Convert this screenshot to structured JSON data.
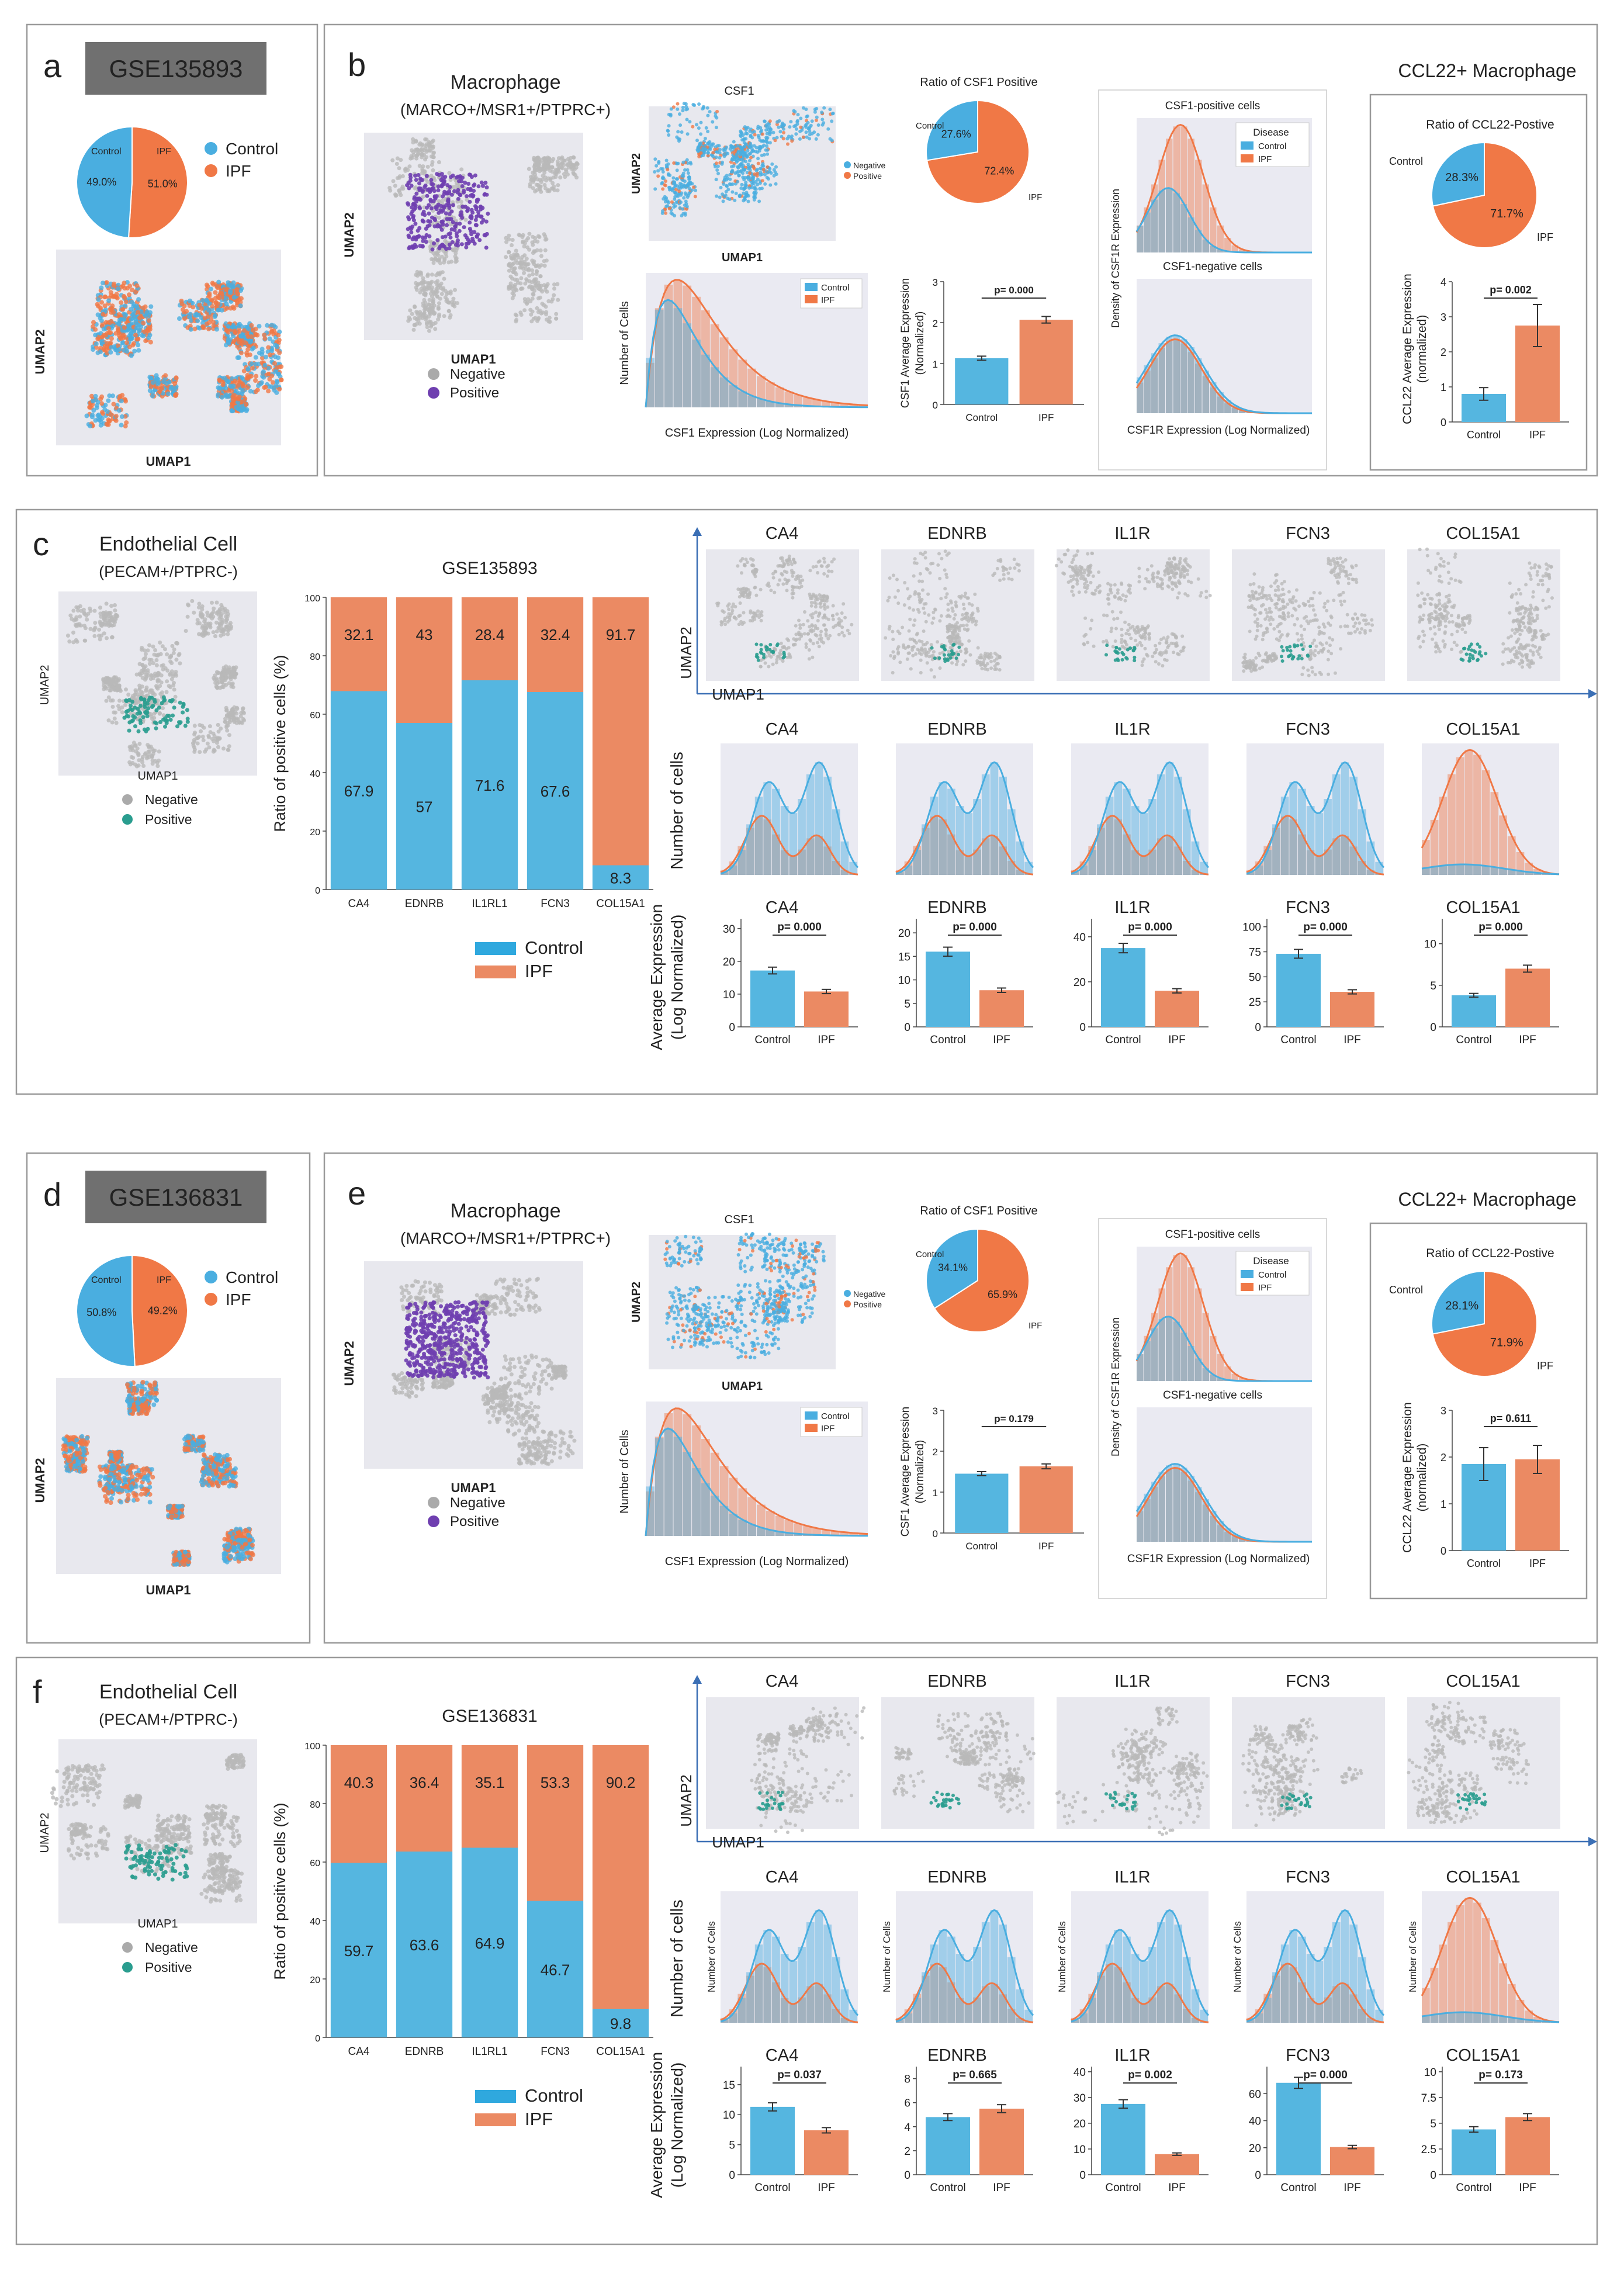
{
  "colors": {
    "control": "#4aaee0",
    "ipf": "#f07846",
    "ipf_bar": "#eb8a63",
    "control_bar": "#55b6e0",
    "purple": "#6f3fb0",
    "green": "#1c9a4c",
    "teal": "#2a9d8f",
    "umap_bg": "#e8e8ee",
    "neg": "#b9b9b9",
    "header": "#707070"
  },
  "labels": {
    "control": "Control",
    "ipf": "IPF",
    "negative": "Negative",
    "positive": "Positive",
    "umap1": "UMAP1",
    "umap2": "UMAP2",
    "disease": "Disease",
    "csf1": "CSF1",
    "ratio_csf1": "Ratio of CSF1 Positive",
    "ratio_ccl22": "Ratio of CCL22-Postive",
    "ccl22_title": "CCL22+ Macrophage",
    "macrophage": "Macrophage",
    "macrophage_markers": "(MARCO+/MSR1+/PTPRC+)",
    "endothelial": "Endothelial  Cell",
    "endothelial_markers": "(PECAM+/PTPRC-)",
    "num_cells": "Number of Cells",
    "num_cells_lc": "Number of cells",
    "csf1_expr": "CSF1 Expression (Log Normalized)",
    "csf1r_expr": "CSF1R Expression (Log Normalized)",
    "csf1_avg": "CSF1 Average Expression\n(Normalized)",
    "ccl22_avg": "CCL22 Average Expression\n(normalized)",
    "density_csf1r": "Density of CSF1R Expression",
    "csf1_pos_cells": "CSF1-positive cells",
    "csf1_neg_cells": "CSF1-negative cells",
    "ratio_pos": "Ratio of positive cells (%)",
    "avg_expr": "Average Expression\n(Log Normalized)"
  },
  "panels": {
    "a": {
      "letter": "a",
      "gse": "GSE135893",
      "pie": {
        "control_label": "Control",
        "ipf_label": "IPF",
        "control_pct": "49.0%",
        "ipf_pct": "51.0%",
        "control": 49.0,
        "ipf": 51.0
      }
    },
    "b": {
      "letter": "b",
      "pie_csf1": {
        "control_pct": "27.6%",
        "ipf_pct": "72.4%",
        "control": 27.6,
        "ipf": 72.4
      },
      "pie_ccl22": {
        "control_pct": "28.3%",
        "ipf_pct": "71.7%",
        "control": 28.3,
        "ipf": 71.7
      },
      "pval_csf1": "p= 0.000",
      "pval_ccl22": "p= 0.002"
    },
    "c": {
      "letter": "c",
      "gse": "GSE135893"
    },
    "d": {
      "letter": "d",
      "gse": "GSE136831",
      "pie": {
        "control_label": "Control",
        "ipf_label": "IPF",
        "control_pct": "50.8%",
        "ipf_pct": "49.2%",
        "control": 50.8,
        "ipf": 49.2
      }
    },
    "e": {
      "letter": "e",
      "pie_csf1": {
        "control_pct": "34.1%",
        "ipf_pct": "65.9%",
        "control": 34.1,
        "ipf": 65.9
      },
      "pie_ccl22": {
        "control_pct": "28.1%",
        "ipf_pct": "71.9%",
        "control": 28.1,
        "ipf": 71.9
      },
      "pval_csf1": "p= 0.179",
      "pval_ccl22": "p= 0.611"
    },
    "f": {
      "letter": "f",
      "gse": "GSE136831"
    }
  },
  "chart_data": [
    {
      "id": "a_pie",
      "type": "pie",
      "categories": [
        "Control",
        "IPF"
      ],
      "values": [
        49.0,
        51.0
      ]
    },
    {
      "id": "b_csf1_bar",
      "type": "bar",
      "title": "",
      "categories": [
        "Control",
        "IPF"
      ],
      "values": [
        1.13,
        2.07
      ],
      "errors": [
        0.05,
        0.08
      ],
      "ylim": [
        0,
        3
      ],
      "yticks": [
        0,
        1,
        2,
        3
      ],
      "pvalue": "p= 0.000"
    },
    {
      "id": "b_ccl22_bar",
      "type": "bar",
      "categories": [
        "Control",
        "IPF"
      ],
      "values": [
        0.8,
        2.75
      ],
      "errors": [
        0.18,
        0.6
      ],
      "ylim": [
        0,
        4
      ],
      "yticks": [
        0,
        1,
        2,
        3,
        4
      ],
      "pvalue": "p= 0.002"
    },
    {
      "id": "c_stacked",
      "type": "bar",
      "title": "GSE135893",
      "categories": [
        "CA4",
        "EDNRB",
        "IL1RL1",
        "FCN3",
        "COL15A1"
      ],
      "series": [
        {
          "name": "Control",
          "values": [
            67.9,
            57.0,
            71.6,
            67.6,
            8.3
          ]
        },
        {
          "name": "IPF",
          "values": [
            32.1,
            43.0,
            28.4,
            32.4,
            91.7
          ]
        }
      ],
      "ylim": [
        0,
        100
      ],
      "yticks": [
        0,
        20,
        40,
        60,
        80,
        100
      ]
    },
    {
      "id": "c_bars",
      "type": "bar",
      "genes": [
        "CA4",
        "EDNRB",
        "IL1R",
        "FCN3",
        "COL15A1"
      ],
      "pvalues": [
        "p= 0.000",
        "p= 0.000",
        "p= 0.000",
        "p= 0.000",
        "p= 0.000"
      ],
      "control": [
        17.2,
        16.0,
        35.0,
        73.0,
        3.8
      ],
      "ipf": [
        10.8,
        7.8,
        16.0,
        35.0,
        7.0
      ],
      "yticks": [
        [
          0,
          10,
          20,
          30
        ],
        [
          0,
          5,
          10,
          15,
          20
        ],
        [
          0,
          20,
          40
        ],
        [
          0,
          25,
          50,
          75,
          100
        ],
        [
          0,
          5,
          10
        ]
      ],
      "ymax": [
        33,
        23,
        48,
        108,
        13
      ]
    },
    {
      "id": "d_pie",
      "type": "pie",
      "categories": [
        "Control",
        "IPF"
      ],
      "values": [
        50.8,
        49.2
      ]
    },
    {
      "id": "e_csf1_bar",
      "type": "bar",
      "categories": [
        "Control",
        "IPF"
      ],
      "values": [
        1.45,
        1.63
      ],
      "errors": [
        0.05,
        0.06
      ],
      "ylim": [
        0,
        3
      ],
      "yticks": [
        0,
        1,
        2,
        3
      ],
      "pvalue": "p= 0.179"
    },
    {
      "id": "e_ccl22_bar",
      "type": "bar",
      "categories": [
        "Control",
        "IPF"
      ],
      "values": [
        1.85,
        1.95
      ],
      "errors": [
        0.35,
        0.3
      ],
      "ylim": [
        0,
        3
      ],
      "yticks": [
        0,
        1,
        2,
        3
      ],
      "pvalue": "p= 0.611"
    },
    {
      "id": "f_stacked",
      "type": "bar",
      "title": "GSE136831",
      "categories": [
        "CA4",
        "EDNRB",
        "IL1RL1",
        "FCN3",
        "COL15A1"
      ],
      "series": [
        {
          "name": "Control",
          "values": [
            59.7,
            63.6,
            64.9,
            46.7,
            9.8
          ]
        },
        {
          "name": "IPF",
          "values": [
            40.3,
            36.4,
            35.1,
            53.3,
            90.2
          ]
        }
      ],
      "ylim": [
        0,
        100
      ],
      "yticks": [
        0,
        20,
        40,
        60,
        80,
        100
      ]
    },
    {
      "id": "f_bars",
      "type": "bar",
      "genes": [
        "CA4",
        "EDNRB",
        "IL1R",
        "FCN3",
        "COL15A1"
      ],
      "pvalues": [
        "p= 0.037",
        "p= 0.665",
        "p= 0.002",
        "p= 0.000",
        "p= 0.173"
      ],
      "control": [
        11.3,
        4.8,
        27.5,
        68.0,
        4.4
      ],
      "ipf": [
        7.4,
        5.5,
        8.0,
        20.5,
        5.6
      ],
      "yticks": [
        [
          0,
          5,
          10,
          15
        ],
        [
          0,
          2,
          4,
          6,
          8
        ],
        [
          0,
          10,
          20,
          30,
          40
        ],
        [
          0,
          20,
          40,
          60
        ],
        [
          0,
          2.5,
          5.0,
          7.5,
          10.0
        ]
      ],
      "ymax": [
        18,
        9,
        42,
        80,
        10.5
      ]
    }
  ]
}
